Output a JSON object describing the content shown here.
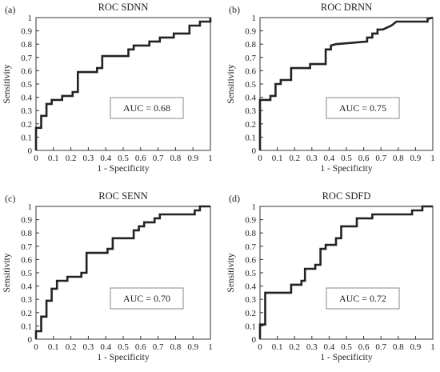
{
  "colors": {
    "curve": "#222222",
    "axis": "#333333",
    "auc_box": "#888888",
    "background": "#ffffff"
  },
  "chart_data": [
    {
      "type": "line",
      "panel": "(a)",
      "title": "ROC SDNN",
      "xlabel": "1 - Specificity",
      "ylabel": "Sensitivity",
      "xlim": [
        0,
        1
      ],
      "ylim": [
        0,
        1
      ],
      "xticks": [
        "0",
        "0.1",
        "0.2",
        "0.3",
        "0.4",
        "0.5",
        "0.6",
        "0.7",
        "0.8",
        "0.9",
        "1"
      ],
      "yticks": [
        "0",
        "0.1",
        "0.2",
        "0.3",
        "0.4",
        "0.5",
        "0.6",
        "0.7",
        "0.8",
        "0.9",
        "1"
      ],
      "grid": false,
      "annotation": "AUC = 0.68",
      "x": [
        0,
        0,
        0.03,
        0.03,
        0.06,
        0.06,
        0.09,
        0.09,
        0.15,
        0.15,
        0.21,
        0.21,
        0.24,
        0.24,
        0.35,
        0.35,
        0.38,
        0.38,
        0.53,
        0.53,
        0.56,
        0.56,
        0.65,
        0.65,
        0.71,
        0.71,
        0.79,
        0.79,
        0.88,
        0.88,
        0.94,
        0.94,
        1,
        1
      ],
      "y": [
        0,
        0.17,
        0.17,
        0.26,
        0.26,
        0.35,
        0.35,
        0.38,
        0.38,
        0.41,
        0.41,
        0.44,
        0.44,
        0.59,
        0.59,
        0.62,
        0.62,
        0.71,
        0.71,
        0.76,
        0.76,
        0.79,
        0.79,
        0.82,
        0.82,
        0.85,
        0.85,
        0.88,
        0.88,
        0.94,
        0.94,
        0.97,
        0.97,
        1
      ]
    },
    {
      "type": "line",
      "panel": "(b)",
      "title": "ROC DRNN",
      "xlabel": "1 - Specificity",
      "ylabel": "Sensitivity",
      "xlim": [
        0,
        1
      ],
      "ylim": [
        0,
        1
      ],
      "xticks": [
        "0",
        "0.1",
        "0.2",
        "0.3",
        "0.4",
        "0.5",
        "0.6",
        "0.7",
        "0.8",
        "0.9",
        "1"
      ],
      "yticks": [
        "0",
        "0.1",
        "0.2",
        "0.3",
        "0.4",
        "0.5",
        "0.6",
        "0.7",
        "0.8",
        "0.9",
        "1"
      ],
      "grid": false,
      "annotation": "AUC = 0.75",
      "x": [
        0,
        0,
        0.06,
        0.06,
        0.09,
        0.09,
        0.12,
        0.12,
        0.18,
        0.18,
        0.29,
        0.29,
        0.38,
        0.38,
        0.41,
        0.41,
        0.44,
        0.62,
        0.62,
        0.65,
        0.65,
        0.68,
        0.68,
        0.71,
        0.71,
        0.76,
        0.76,
        0.79,
        0.79,
        0.97,
        0.97,
        1
      ],
      "y": [
        0,
        0.38,
        0.38,
        0.41,
        0.41,
        0.5,
        0.5,
        0.53,
        0.53,
        0.62,
        0.62,
        0.65,
        0.65,
        0.76,
        0.76,
        0.79,
        0.8,
        0.82,
        0.85,
        0.85,
        0.88,
        0.88,
        0.91,
        0.91,
        0.91,
        0.94,
        0.94,
        0.97,
        0.97,
        0.97,
        0.99,
        1
      ]
    },
    {
      "type": "line",
      "panel": "(c)",
      "title": "ROC SENN",
      "xlabel": "1 - Specificity",
      "ylabel": "Sensitivity",
      "xlim": [
        0,
        1
      ],
      "ylim": [
        0,
        1
      ],
      "xticks": [
        "0",
        "0.1",
        "0.2",
        "0.3",
        "0.4",
        "0.5",
        "0.6",
        "0.7",
        "0.8",
        "0.9",
        "1"
      ],
      "yticks": [
        "0",
        "0.1",
        "0.2",
        "0.3",
        "0.4",
        "0.5",
        "0.6",
        "0.7",
        "0.8",
        "0.9",
        "1"
      ],
      "grid": false,
      "annotation": "AUC = 0.70",
      "x": [
        0,
        0,
        0.03,
        0.03,
        0.06,
        0.06,
        0.09,
        0.09,
        0.12,
        0.12,
        0.18,
        0.18,
        0.26,
        0.26,
        0.29,
        0.29,
        0.41,
        0.41,
        0.44,
        0.44,
        0.56,
        0.56,
        0.59,
        0.59,
        0.62,
        0.62,
        0.68,
        0.68,
        0.71,
        0.71,
        0.91,
        0.91,
        0.94,
        0.94,
        1
      ],
      "y": [
        0,
        0.06,
        0.06,
        0.17,
        0.17,
        0.29,
        0.29,
        0.38,
        0.38,
        0.44,
        0.44,
        0.47,
        0.47,
        0.5,
        0.5,
        0.65,
        0.65,
        0.68,
        0.68,
        0.76,
        0.76,
        0.82,
        0.82,
        0.85,
        0.85,
        0.88,
        0.88,
        0.91,
        0.91,
        0.94,
        0.94,
        0.97,
        0.97,
        1,
        1
      ]
    },
    {
      "type": "line",
      "panel": "(d)",
      "title": "ROC SDFD",
      "xlabel": "1 - Specificity",
      "ylabel": "Sensitivity",
      "xlim": [
        0,
        1
      ],
      "ylim": [
        0,
        1
      ],
      "xticks": [
        "0",
        "0.1",
        "0.2",
        "0.3",
        "0.4",
        "0.5",
        "0.6",
        "0.7",
        "0.8",
        "0.9",
        "1"
      ],
      "yticks": [
        "0",
        "0.1",
        "0.2",
        "0.3",
        "0.4",
        "0.5",
        "0.6",
        "0.7",
        "0.8",
        "0.9",
        "1"
      ],
      "grid": false,
      "annotation": "AUC = 0.72",
      "x": [
        0,
        0,
        0.03,
        0.03,
        0.18,
        0.18,
        0.24,
        0.24,
        0.26,
        0.26,
        0.32,
        0.32,
        0.35,
        0.35,
        0.38,
        0.38,
        0.44,
        0.44,
        0.47,
        0.47,
        0.56,
        0.56,
        0.65,
        0.65,
        0.88,
        0.88,
        0.94,
        0.94,
        1
      ],
      "y": [
        0,
        0.11,
        0.11,
        0.35,
        0.35,
        0.41,
        0.41,
        0.44,
        0.44,
        0.53,
        0.53,
        0.56,
        0.56,
        0.68,
        0.68,
        0.71,
        0.71,
        0.76,
        0.76,
        0.85,
        0.85,
        0.91,
        0.91,
        0.94,
        0.94,
        0.97,
        0.97,
        1,
        1
      ]
    }
  ]
}
